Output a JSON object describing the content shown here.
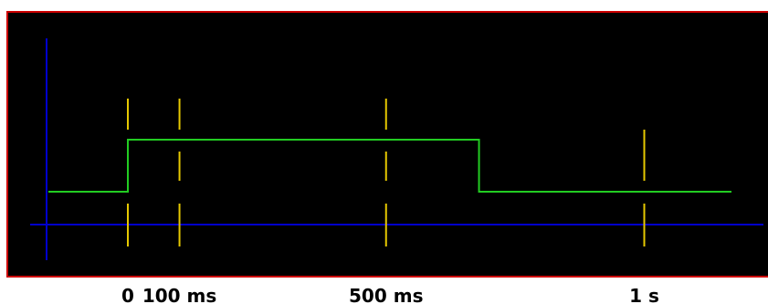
{
  "diagram": {
    "type": "timing",
    "colors": {
      "background": "#000000",
      "border": "#cc0000",
      "axis": "#0000cc",
      "signal": "#22cc22",
      "marker": "#e6c800"
    },
    "signal": {
      "low": 0,
      "high": 1,
      "rise_ms": 0,
      "fall_ms": 680
    },
    "markers": [
      {
        "t_ms": 0,
        "label": "0"
      },
      {
        "t_ms": 100,
        "label": "100 ms"
      },
      {
        "t_ms": 500,
        "label": "500 ms"
      },
      {
        "t_ms": 1000,
        "label": "1 s"
      }
    ]
  }
}
